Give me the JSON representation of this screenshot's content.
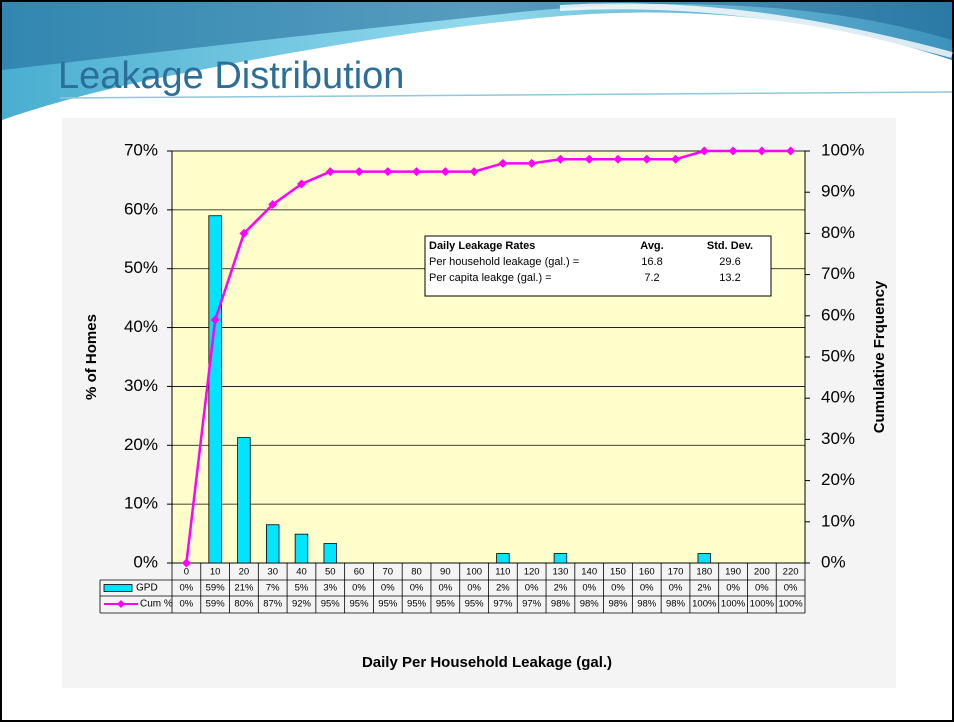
{
  "slide": {
    "title": "Leakage Distribution"
  },
  "chart_data": {
    "type": "bar",
    "x_label": "Daily Per Household Leakage (gal.)",
    "y_label": "% of Homes",
    "y2_label": "Cumulative Frquency",
    "categories": [
      "0",
      "10",
      "20",
      "30",
      "40",
      "50",
      "60",
      "70",
      "80",
      "90",
      "100",
      "110",
      "120",
      "130",
      "140",
      "150",
      "160",
      "170",
      "180",
      "190",
      "200",
      "220"
    ],
    "series": [
      {
        "name": "GPD",
        "type": "bar",
        "color": "#00e5ff",
        "values": [
          0,
          59,
          21.3,
          6.5,
          4.9,
          3.3,
          0,
          0,
          0,
          0,
          0,
          1.6,
          0,
          1.6,
          0,
          0,
          0,
          0,
          1.6,
          0,
          0,
          0
        ],
        "value_labels": [
          "0%",
          "59%",
          "21%",
          "7%",
          "5%",
          "3%",
          "0%",
          "0%",
          "0%",
          "0%",
          "0%",
          "2%",
          "0%",
          "2%",
          "0%",
          "0%",
          "0%",
          "0%",
          "2%",
          "0%",
          "0%",
          "0%"
        ]
      },
      {
        "name": "Cum %",
        "type": "line",
        "axis": "y2",
        "color": "#ff00ff",
        "values": [
          0,
          59,
          80,
          87,
          92,
          95,
          95,
          95,
          95,
          95,
          95,
          97,
          97,
          98,
          98,
          98,
          98,
          98,
          100,
          100,
          100,
          100
        ],
        "value_labels": [
          "0%",
          "59%",
          "80%",
          "87%",
          "92%",
          "95%",
          "95%",
          "95%",
          "95%",
          "95%",
          "95%",
          "97%",
          "97%",
          "98%",
          "98%",
          "98%",
          "98%",
          "98%",
          "100%",
          "100%",
          "100%",
          "100%"
        ]
      }
    ],
    "ylim": [
      0,
      70
    ],
    "yticks": [
      {
        "value": 0,
        "label": "0%"
      },
      {
        "value": 10,
        "label": "10%"
      },
      {
        "value": 20,
        "label": "20%"
      },
      {
        "value": 30,
        "label": "30%"
      },
      {
        "value": 40,
        "label": "40%"
      },
      {
        "value": 50,
        "label": "50%"
      },
      {
        "value": 60,
        "label": "60%"
      },
      {
        "value": 70,
        "label": "70%"
      }
    ],
    "y2lim": [
      0,
      100
    ],
    "y2ticks": [
      {
        "value": 0,
        "label": "0%"
      },
      {
        "value": 10,
        "label": "10%"
      },
      {
        "value": 20,
        "label": "20%"
      },
      {
        "value": 30,
        "label": "30%"
      },
      {
        "value": 40,
        "label": "40%"
      },
      {
        "value": 50,
        "label": "50%"
      },
      {
        "value": 60,
        "label": "60%"
      },
      {
        "value": 70,
        "label": "70%"
      },
      {
        "value": 80,
        "label": "80%"
      },
      {
        "value": 90,
        "label": "90%"
      },
      {
        "value": 100,
        "label": "100%"
      }
    ],
    "grid": true,
    "stats_box": {
      "header": [
        "Daily Leakage Rates",
        "Avg.",
        "Std. Dev."
      ],
      "rows": [
        [
          "Per household leakage (gal.) =",
          "16.8",
          "29.6"
        ],
        [
          "Per capita leakge (gal.)  =",
          "7.2",
          "13.2"
        ]
      ]
    }
  }
}
